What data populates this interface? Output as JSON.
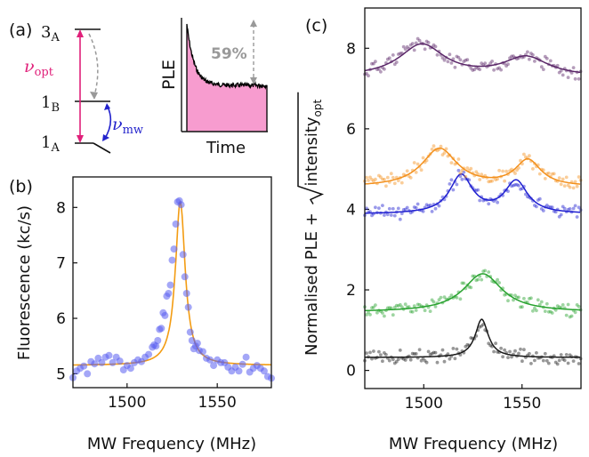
{
  "panel_a": {
    "label": "(a)",
    "levels": [
      {
        "main": "3",
        "sub": "A"
      },
      {
        "main": "1",
        "sub": "B"
      },
      {
        "main": "1",
        "sub": "A"
      }
    ],
    "nu_opt": {
      "main": "ν",
      "sub": "opt"
    },
    "nu_mw": {
      "main": "ν",
      "sub": "mw"
    },
    "inset": {
      "ylabel": "PLE",
      "xlabel": "Time",
      "drop_label": "59%"
    }
  },
  "chart_data": [
    {
      "panel": "(b)",
      "type": "scatter",
      "xlabel": "MW Frequency (MHz)",
      "ylabel": "Fluorescence (kc/s)",
      "xlim": [
        1470,
        1580
      ],
      "ylim": [
        4.75,
        8.55
      ],
      "xticks": [
        1500,
        1550
      ],
      "yticks": [
        5,
        6,
        7,
        8
      ],
      "fit": {
        "center": 1529.5,
        "gamma": 3.3,
        "baseline": 5.15,
        "amplitude": 2.95,
        "color": "#f39c12"
      },
      "points_color": "#5a5ef0",
      "x": [
        1470,
        1472,
        1474,
        1476,
        1478,
        1480,
        1482,
        1484,
        1486,
        1488,
        1490,
        1492,
        1494,
        1496,
        1498,
        1500,
        1502,
        1504,
        1506,
        1508,
        1510,
        1512,
        1514,
        1515,
        1516,
        1517,
        1518,
        1519,
        1520,
        1521,
        1522,
        1523,
        1524,
        1525,
        1526,
        1527,
        1528,
        1529,
        1530,
        1531,
        1532,
        1533,
        1534,
        1535,
        1536,
        1537,
        1538,
        1539,
        1540,
        1542,
        1544,
        1546,
        1548,
        1550,
        1552,
        1554,
        1556,
        1558,
        1560,
        1562,
        1564,
        1566,
        1568,
        1570,
        1572,
        1574,
        1576,
        1578,
        1580
      ],
      "y": [
        4.93,
        5.05,
        5.1,
        5.14,
        5.0,
        5.22,
        5.18,
        5.28,
        5.2,
        5.3,
        5.33,
        5.2,
        5.3,
        5.23,
        5.07,
        5.15,
        5.1,
        5.2,
        5.25,
        5.22,
        5.3,
        5.35,
        5.48,
        5.52,
        5.5,
        5.6,
        5.8,
        5.82,
        6.1,
        6.05,
        6.4,
        6.45,
        6.6,
        7.05,
        7.25,
        7.7,
        8.1,
        8.12,
        8.05,
        7.15,
        6.75,
        6.45,
        6.2,
        5.75,
        5.6,
        5.45,
        5.5,
        5.55,
        5.42,
        5.4,
        5.28,
        5.25,
        5.15,
        5.25,
        5.2,
        5.2,
        5.12,
        5.05,
        5.12,
        5.05,
        5.17,
        5.3,
        5.03,
        5.1,
        5.15,
        5.1,
        5.05,
        4.95,
        4.92
      ]
    },
    {
      "panel": "(c)",
      "type": "scatter",
      "xlabel": "MW Frequency (MHz)",
      "ylabel_main": "Normalised PLE + ",
      "ylabel_sqrt": "intensity",
      "ylabel_sub": "opt",
      "xlim": [
        1470,
        1580
      ],
      "ylim": [
        -0.45,
        9.0
      ],
      "xticks": [
        1500,
        1550
      ],
      "yticks": [
        0,
        2,
        4,
        6,
        8
      ],
      "series": [
        {
          "color": "#1a1a1a",
          "offset": 0.32,
          "peaks": [
            {
              "x0": 1529.5,
              "g": 4.0,
              "a": 0.95
            }
          ],
          "noise_seed": 3
        },
        {
          "color": "#27a22e",
          "offset": 1.45,
          "peaks": [
            {
              "x0": 1530,
              "g": 12,
              "a": 0.95
            }
          ],
          "noise_seed": 11
        },
        {
          "color": "#2020d0",
          "offset": 3.88,
          "peaks": [
            {
              "x0": 1519,
              "g": 7,
              "a": 0.95
            },
            {
              "x0": 1547,
              "g": 7,
              "a": 0.8
            }
          ],
          "noise_seed": 23
        },
        {
          "color": "#f3901c",
          "offset": 4.55,
          "peaks": [
            {
              "x0": 1508,
              "g": 11,
              "a": 0.95
            },
            {
              "x0": 1553,
              "g": 8,
              "a": 0.65
            }
          ],
          "noise_seed": 37
        },
        {
          "color": "#5a2668",
          "offset": 7.28,
          "peaks": [
            {
              "x0": 1499,
              "g": 14,
              "a": 0.8
            },
            {
              "x0": 1552,
              "g": 14,
              "a": 0.48
            }
          ],
          "noise_seed": 51
        }
      ]
    }
  ]
}
